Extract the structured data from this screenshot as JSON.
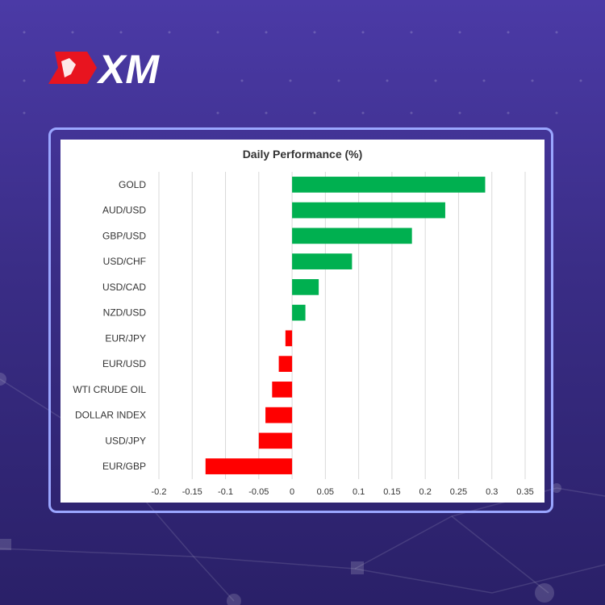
{
  "brand": {
    "logo_text": "XM",
    "accent_color": "#e8141f"
  },
  "chart_data": {
    "type": "bar",
    "orientation": "horizontal",
    "title": "Daily Performance (%)",
    "xlabel": "",
    "ylabel": "",
    "categories": [
      "GOLD",
      "AUD/USD",
      "GBP/USD",
      "USD/CHF",
      "USD/CAD",
      "NZD/USD",
      "EUR/JPY",
      "EUR/USD",
      "WTI CRUDE OIL",
      "DOLLAR INDEX",
      "USD/JPY",
      "EUR/GBP"
    ],
    "values": [
      0.29,
      0.23,
      0.18,
      0.09,
      0.04,
      0.02,
      -0.01,
      -0.02,
      -0.03,
      -0.04,
      -0.05,
      -0.13
    ],
    "xlim": [
      -0.2,
      0.35
    ],
    "ticks": [
      -0.2,
      -0.15,
      -0.1,
      -0.05,
      0,
      0.05,
      0.1,
      0.15,
      0.2,
      0.25,
      0.3,
      0.35
    ],
    "tick_labels": [
      "-0.2",
      "-0.15",
      "-0.1",
      "-0.05",
      "0",
      "0.05",
      "0.1",
      "0.15",
      "0.2",
      "0.25",
      "0.3",
      "0.35"
    ],
    "grid": "vertical",
    "legend": "none",
    "positive_color": "#00b050",
    "negative_color": "#ff0000"
  }
}
